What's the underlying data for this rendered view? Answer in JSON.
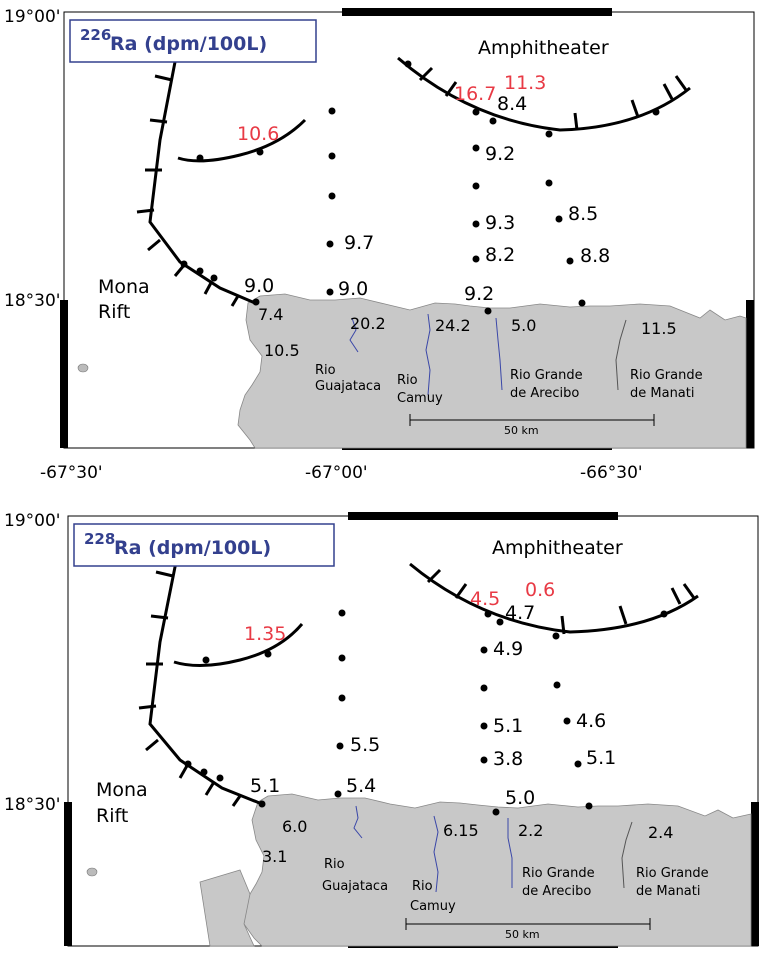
{
  "top": {
    "title_iso": "226",
    "title_rest": "Ra (dpm/100L)",
    "coords": {
      "lat_top": "19°00'",
      "lat_mid": "18°30'",
      "lon_1": "-67°30'",
      "lon_2": "-67°00'",
      "lon_3": "-66°30'"
    },
    "amphitheater": "Amphitheater",
    "mona_1": "Mona",
    "mona_2": "Rift",
    "red_values": {
      "a": "10.6",
      "b": "16.7",
      "c": "11.3"
    },
    "values": {
      "v1": "8.4",
      "v2": "9.2",
      "v3": "9.3",
      "v4": "8.5",
      "v5": "9.7",
      "v6": "8.2",
      "v7": "8.8",
      "v8": "9.0",
      "v9": "9.0",
      "v10": "9.2",
      "v11": "7.4",
      "v12": "20.2",
      "v13": "24.2",
      "v14": "5.0",
      "v15": "11.5",
      "v16": "10.5"
    },
    "rivers": {
      "guajataca_1": "Rio",
      "guajataca_2": "Guajataca",
      "camuy_1": "Rio",
      "camuy_2": "Camuy",
      "arecibo_1": "Rio Grande",
      "arecibo_2": "de Arecibo",
      "manati_1": "Rio Grande",
      "manati_2": "de Manati"
    },
    "scale": "50 km"
  },
  "bottom": {
    "title_iso": "228",
    "title_rest": "Ra (dpm/100L)",
    "coords": {
      "lat_top": "19°00'",
      "lat_mid": "18°30'"
    },
    "amphitheater": "Amphitheater",
    "mona_1": "Mona",
    "mona_2": "Rift",
    "red_values": {
      "a": "1.35",
      "b": "4.5",
      "c": "0.6"
    },
    "values": {
      "v1": "4.7",
      "v2": "4.9",
      "v3": "5.1",
      "v4": "4.6",
      "v5": "5.5",
      "v6": "3.8",
      "v7": "5.1",
      "v8": "5.1",
      "v9": "5.4",
      "v10": "5.0",
      "v11": "6.0",
      "v12": "6.15",
      "v13": "2.2",
      "v14": "2.4",
      "v15": "3.1"
    },
    "rivers": {
      "guajataca_1": "Rio",
      "guajataca_2": "Guajataca",
      "camuy_1": "Rio",
      "camuy_2": "Camuy",
      "arecibo_1": "Rio Grande",
      "arecibo_2": "de Arecibo",
      "manati_1": "Rio Grande",
      "manati_2": "de Manati"
    },
    "scale": "50 km"
  },
  "colors": {
    "land": "#c8c8c8",
    "river": "#3a47a8",
    "red_label": "#e83a45",
    "title": "#33408e"
  }
}
